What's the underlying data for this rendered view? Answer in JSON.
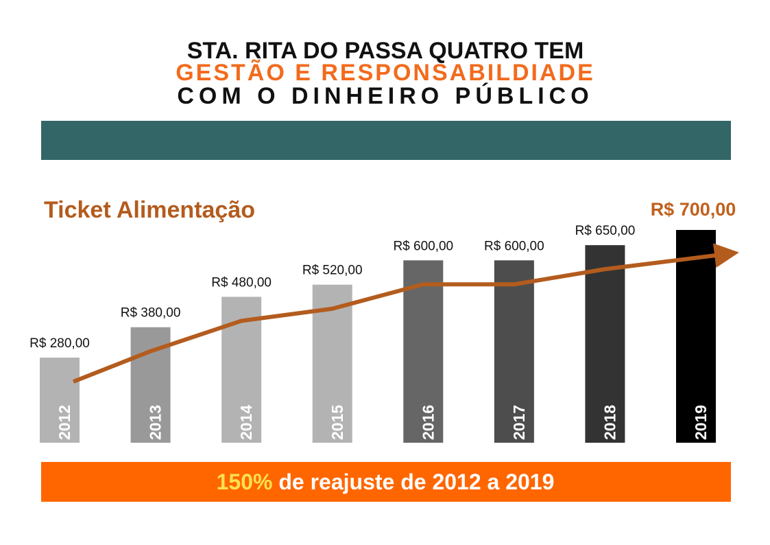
{
  "header": {
    "line1": "STA. RITA DO PASSA QUATRO TEM",
    "line2": "GESTÃO E RESPONSABILDIADE",
    "line3": "COM O DINHEIRO PÚBLICO"
  },
  "chart_data": {
    "type": "bar",
    "title": "Ticket Alimentação",
    "categories": [
      "2012",
      "2013",
      "2014",
      "2015",
      "2016",
      "2017",
      "2018",
      "2019"
    ],
    "values": [
      280,
      380,
      480,
      520,
      600,
      600,
      650,
      700
    ],
    "value_labels": [
      "R$ 280,00",
      "R$ 380,00",
      "R$ 480,00",
      "R$ 520,00",
      "R$ 600,00",
      "R$ 600,00",
      "R$ 650,00",
      "R$ 700,00"
    ],
    "colors": [
      "#b3b3b3",
      "#999999",
      "#b3b3b3",
      "#b3b3b3",
      "#666666",
      "#4d4d4d",
      "#333333",
      "#000000"
    ],
    "trend_color": "#b35c1e"
  },
  "footer": {
    "highlight": "150%",
    "text": " de reajuste de 2012 a 2019"
  }
}
